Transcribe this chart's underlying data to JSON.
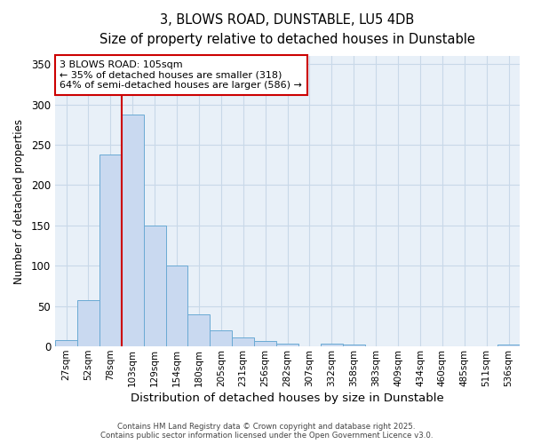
{
  "title": "3, BLOWS ROAD, DUNSTABLE, LU5 4DB",
  "subtitle": "Size of property relative to detached houses in Dunstable",
  "xlabel": "Distribution of detached houses by size in Dunstable",
  "ylabel": "Number of detached properties",
  "categories": [
    "27sqm",
    "52sqm",
    "78sqm",
    "103sqm",
    "129sqm",
    "154sqm",
    "180sqm",
    "205sqm",
    "231sqm",
    "256sqm",
    "282sqm",
    "307sqm",
    "332sqm",
    "358sqm",
    "383sqm",
    "409sqm",
    "434sqm",
    "460sqm",
    "485sqm",
    "511sqm",
    "536sqm"
  ],
  "values": [
    8,
    57,
    238,
    288,
    150,
    100,
    40,
    20,
    11,
    7,
    3,
    0,
    4,
    2,
    0,
    0,
    0,
    0,
    0,
    0,
    2
  ],
  "bar_color": "#c9d9f0",
  "bar_edge_color": "#6aaad4",
  "grid_color": "#c8d8e8",
  "plot_bg_color": "#e8f0f8",
  "fig_bg_color": "#ffffff",
  "red_line_index": 3,
  "annotation_title": "3 BLOWS ROAD: 105sqm",
  "annotation_line1": "← 35% of detached houses are smaller (318)",
  "annotation_line2": "64% of semi-detached houses are larger (586) →",
  "annotation_box_color": "#ffffff",
  "annotation_border_color": "#cc0000",
  "footer_line1": "Contains HM Land Registry data © Crown copyright and database right 2025.",
  "footer_line2": "Contains public sector information licensed under the Open Government Licence v3.0.",
  "ylim": [
    0,
    360
  ],
  "yticks": [
    0,
    50,
    100,
    150,
    200,
    250,
    300,
    350
  ]
}
